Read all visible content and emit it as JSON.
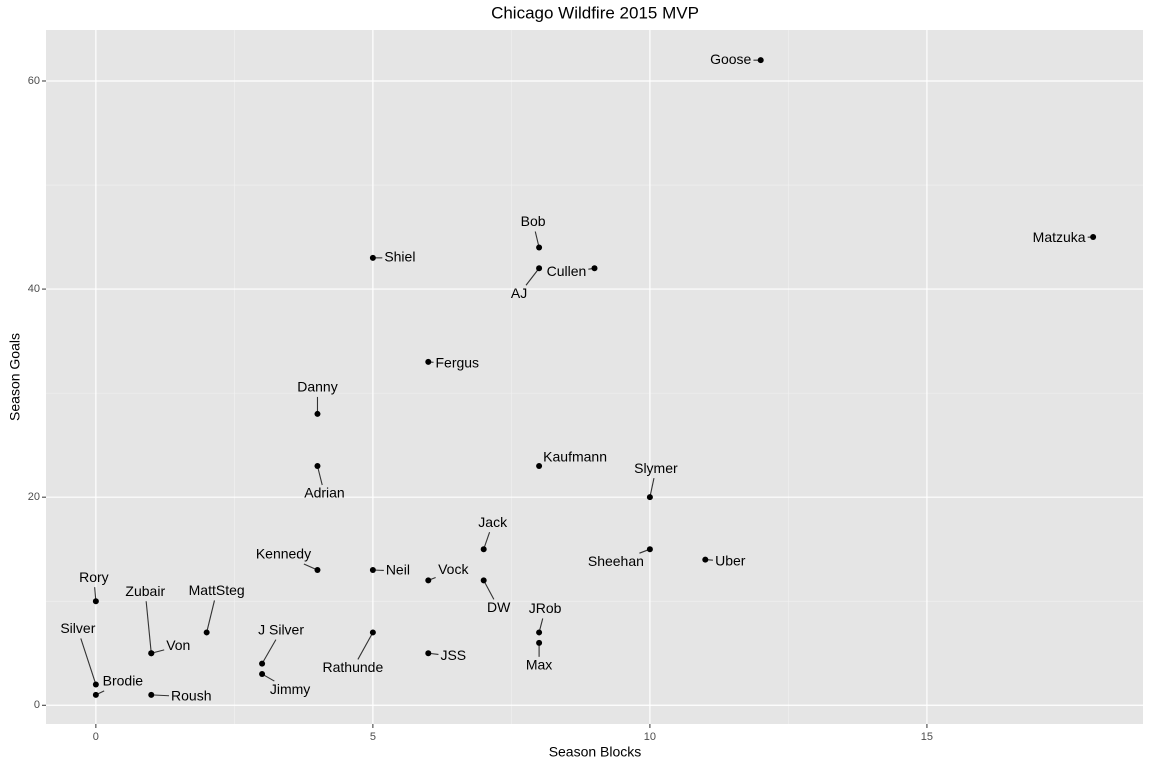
{
  "chart_data": {
    "type": "scatter",
    "title": "Chicago Wildfire 2015 MVP",
    "x_label": "Season Blocks",
    "y_label": "Season Goals",
    "labels": [
      "Goose",
      "Matzuka",
      "Bob",
      "Shiel",
      "AJ",
      "Cullen",
      "Fergus",
      "Danny",
      "Adrian",
      "Kaufmann",
      "Slymer",
      "Jack",
      "Sheehan",
      "Uber",
      "Kennedy",
      "Neil",
      "Vock",
      "DW",
      "Rory",
      "JRob",
      "MattSteg",
      "Rathunde",
      "Max",
      "Zubair",
      "Von",
      "JSS",
      "J Silver",
      "Jimmy",
      "Silver",
      "Brodie",
      "Roush"
    ],
    "x": [
      12,
      18,
      8,
      5,
      8,
      9,
      6,
      4,
      4,
      8,
      10,
      7,
      10,
      11,
      4,
      5,
      6,
      7,
      0,
      8,
      2,
      5,
      8,
      1,
      1,
      6,
      3,
      3,
      0,
      0,
      1
    ],
    "values": [
      62,
      45,
      44,
      43,
      42,
      42,
      33,
      28,
      23,
      23,
      20,
      15,
      15,
      14,
      13,
      13,
      12,
      12,
      10,
      7,
      7,
      7,
      6,
      5,
      5,
      5,
      4,
      3,
      2,
      1,
      1
    ],
    "color": "#000000",
    "xlim": [
      -0.9,
      18.9
    ],
    "ylim": [
      -1.8,
      64.9
    ],
    "xticks": [
      0,
      5,
      10,
      15
    ],
    "yticks": [
      0,
      20,
      40,
      60
    ],
    "grid": true
  }
}
